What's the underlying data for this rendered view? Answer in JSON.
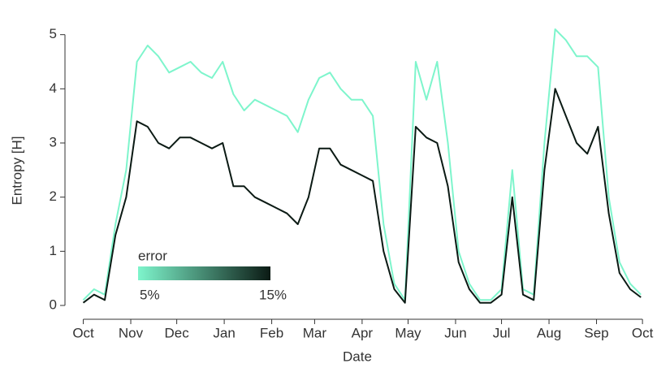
{
  "chart_data": {
    "type": "line",
    "x_label": "Date",
    "y_label": "Entropy [H]",
    "legend_title": "error",
    "xlim": [
      -4,
      366
    ],
    "ylim": [
      0,
      5.1
    ],
    "xticks": [
      {
        "value": 0,
        "label": "Oct"
      },
      {
        "value": 31,
        "label": "Nov"
      },
      {
        "value": 61,
        "label": "Dec"
      },
      {
        "value": 92,
        "label": "Jan"
      },
      {
        "value": 123,
        "label": "Feb"
      },
      {
        "value": 151,
        "label": "Mar"
      },
      {
        "value": 182,
        "label": "Apr"
      },
      {
        "value": 212,
        "label": "May"
      },
      {
        "value": 243,
        "label": "Jun"
      },
      {
        "value": 273,
        "label": "Jul"
      },
      {
        "value": 304,
        "label": "Aug"
      },
      {
        "value": 335,
        "label": "Sep"
      },
      {
        "value": 365,
        "label": "Oct"
      }
    ],
    "yticks": [
      0,
      1,
      2,
      3,
      4,
      5
    ],
    "x": [
      0,
      7,
      14,
      21,
      28,
      35,
      42,
      49,
      56,
      63,
      70,
      77,
      84,
      91,
      98,
      105,
      112,
      119,
      126,
      133,
      140,
      147,
      154,
      161,
      168,
      175,
      182,
      189,
      196,
      203,
      210,
      217,
      224,
      231,
      238,
      245,
      252,
      259,
      266,
      273,
      280,
      287,
      294,
      301,
      308,
      315,
      322,
      329,
      336,
      343,
      350,
      357,
      364
    ],
    "series": [
      {
        "name": "5%",
        "color": "#7ef5cc",
        "values": [
          0.1,
          0.3,
          0.2,
          1.5,
          2.5,
          4.5,
          4.8,
          4.6,
          4.3,
          4.4,
          4.5,
          4.3,
          4.2,
          4.5,
          3.9,
          3.6,
          3.8,
          3.7,
          3.6,
          3.5,
          3.2,
          3.8,
          4.2,
          4.3,
          4.0,
          3.8,
          3.8,
          3.5,
          1.5,
          0.4,
          0.1,
          4.5,
          3.8,
          4.5,
          3.0,
          1.0,
          0.4,
          0.1,
          0.1,
          0.3,
          2.5,
          0.3,
          0.2,
          3.0,
          5.1,
          4.9,
          4.6,
          4.6,
          4.4,
          2.0,
          0.8,
          0.4,
          0.2
        ]
      },
      {
        "name": "15%",
        "color": "#0b1a14",
        "values": [
          0.05,
          0.2,
          0.1,
          1.3,
          2.0,
          3.4,
          3.3,
          3.0,
          2.9,
          3.1,
          3.1,
          3.0,
          2.9,
          3.0,
          2.2,
          2.2,
          2.0,
          1.9,
          1.8,
          1.7,
          1.5,
          2.0,
          2.9,
          2.9,
          2.6,
          2.5,
          2.4,
          2.3,
          1.0,
          0.3,
          0.05,
          3.3,
          3.1,
          3.0,
          2.2,
          0.8,
          0.3,
          0.05,
          0.05,
          0.2,
          2.0,
          0.2,
          0.1,
          2.5,
          4.0,
          3.5,
          3.0,
          2.8,
          3.3,
          1.7,
          0.6,
          0.3,
          0.15
        ]
      }
    ]
  }
}
